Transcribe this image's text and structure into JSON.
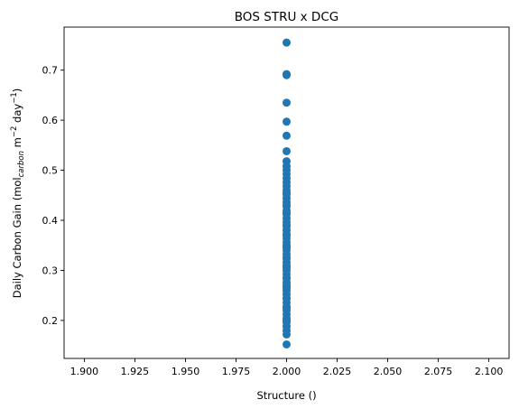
{
  "chart_data": {
    "type": "scatter",
    "title": "BOS STRU x DCG",
    "xlabel": "Structure ()",
    "ylabel": {
      "prefix": "Daily Carbon Gain (mol",
      "sub": "carbon",
      "mid": " m",
      "sup1": "−2",
      "mid2": " day",
      "sup2": "−1",
      "suffix": ")"
    },
    "xlim": [
      1.89,
      2.11
    ],
    "ylim": [
      0.124,
      0.786
    ],
    "xticks": [
      "1.900",
      "1.925",
      "1.950",
      "1.975",
      "2.000",
      "2.025",
      "2.050",
      "2.075",
      "2.100"
    ],
    "yticks": [
      "0.2",
      "0.3",
      "0.4",
      "0.5",
      "0.6",
      "0.7"
    ],
    "marker_color": "#1f77b4",
    "grid": false,
    "series": [
      {
        "x": [
          2.0,
          2.0,
          2.0,
          2.0,
          2.0,
          2.0,
          2.0,
          2.0,
          2.0,
          2.0,
          2.0,
          2.0,
          2.0,
          2.0,
          2.0,
          2.0,
          2.0,
          2.0,
          2.0,
          2.0,
          2.0,
          2.0,
          2.0,
          2.0,
          2.0,
          2.0,
          2.0,
          2.0,
          2.0,
          2.0,
          2.0,
          2.0,
          2.0,
          2.0,
          2.0,
          2.0,
          2.0,
          2.0,
          2.0,
          2.0,
          2.0,
          2.0,
          2.0,
          2.0,
          2.0,
          2.0,
          2.0,
          2.0,
          2.0,
          2.0,
          2.0,
          2.0,
          2.0,
          2.0,
          2.0,
          2.0,
          2.0,
          2.0,
          2.0,
          2.0,
          2.0,
          2.0,
          2.0,
          2.0,
          2.0,
          2.0,
          2.0,
          2.0
        ],
        "y": [
          0.755,
          0.692,
          0.69,
          0.635,
          0.597,
          0.569,
          0.538,
          0.518,
          0.508,
          0.5,
          0.492,
          0.484,
          0.476,
          0.468,
          0.46,
          0.452,
          0.444,
          0.436,
          0.428,
          0.42,
          0.412,
          0.404,
          0.396,
          0.388,
          0.38,
          0.372,
          0.364,
          0.356,
          0.348,
          0.34,
          0.332,
          0.324,
          0.316,
          0.308,
          0.3,
          0.292,
          0.284,
          0.276,
          0.268,
          0.26,
          0.252,
          0.244,
          0.236,
          0.228,
          0.22,
          0.212,
          0.204,
          0.196,
          0.188,
          0.18,
          0.172,
          0.152,
          0.415,
          0.39,
          0.37,
          0.345,
          0.325,
          0.305,
          0.285,
          0.265,
          0.245,
          0.225,
          0.2,
          0.35,
          0.31,
          0.27,
          0.43,
          0.455
        ]
      }
    ]
  }
}
